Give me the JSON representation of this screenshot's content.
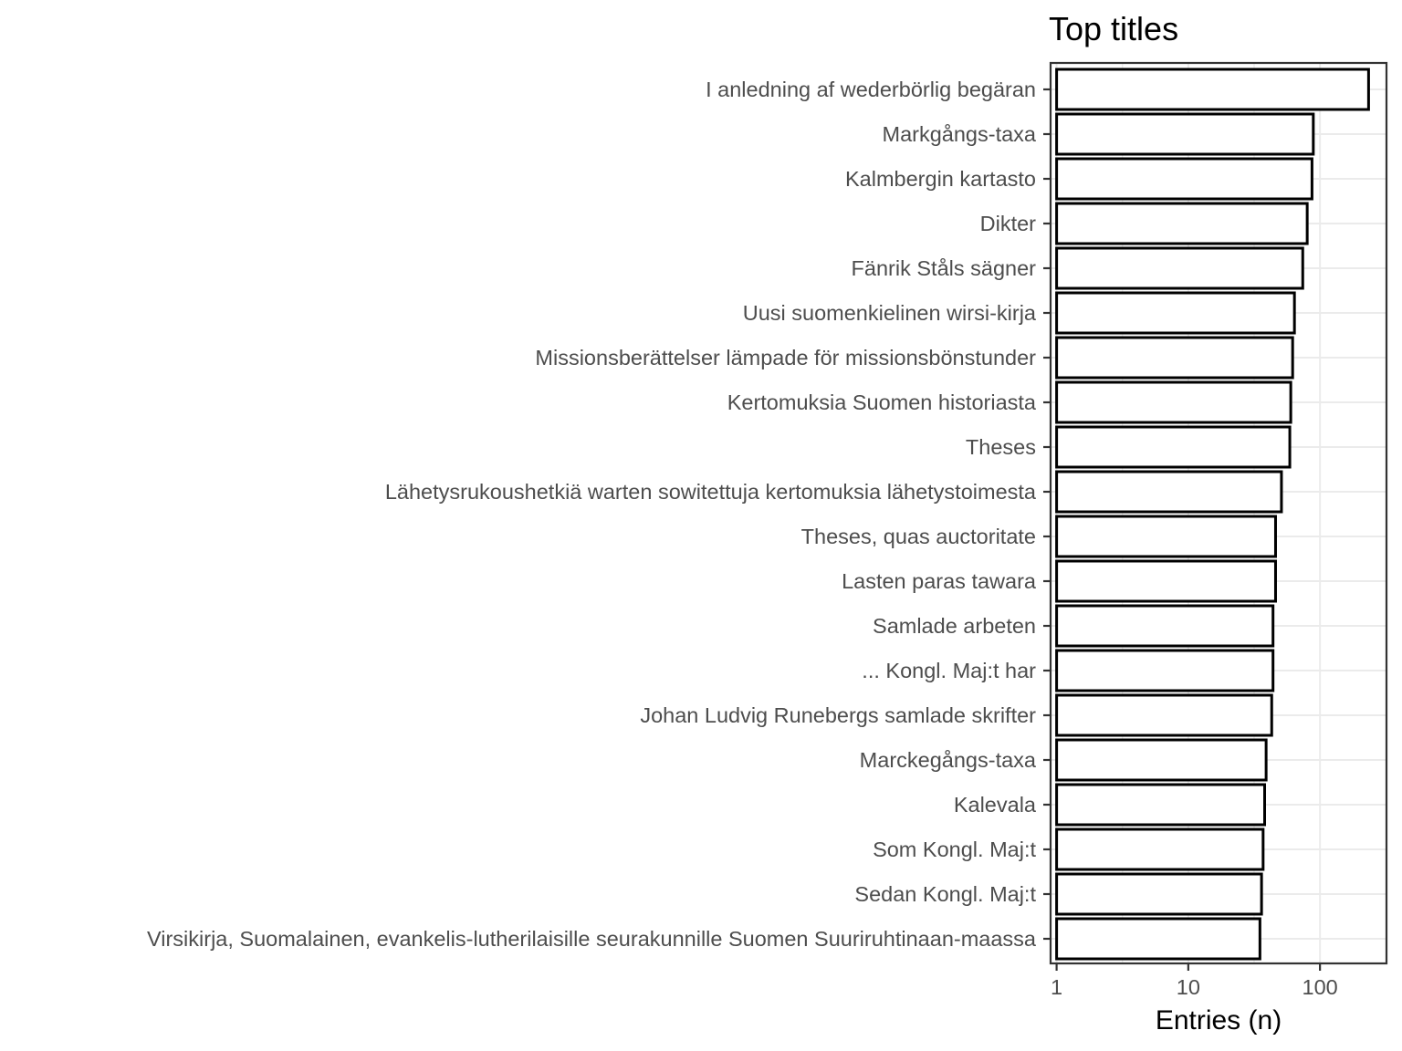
{
  "chart_data": {
    "type": "bar",
    "orientation": "horizontal",
    "title": "Top titles",
    "xlabel": "Entries (n)",
    "ylabel": "",
    "x_scale": "log10",
    "xlim": [
      0.9,
      320
    ],
    "x_ticks": [
      1,
      10,
      100
    ],
    "x_tick_labels": [
      "1",
      "10",
      "100"
    ],
    "grid": "on",
    "categories": [
      "I anledning af wederbörlig begäran",
      "Markgångs-taxa",
      "Kalmbergin kartasto",
      "Dikter",
      "Fänrik Ståls sägner",
      "Uusi suomenkielinen wirsi-kirja",
      "Missionsberättelser lämpade för missionsbönstunder",
      "Kertomuksia Suomen historiasta",
      "Theses",
      "Lähetysrukoushetkiä warten sowitettuja kertomuksia lähetystoimesta",
      "Theses, quas auctoritate",
      "Lasten paras tawara",
      "Samlade arbeten",
      "... Kongl. Maj:t har",
      "Johan Ludvig Runebergs samlade skrifter",
      "Marckegångs-taxa",
      "Kalevala",
      "Som Kongl. Maj:t",
      "Sedan Kongl. Maj:t",
      "Virsikirja, Suomalainen, evankelis-lutherilaisille seurakunnille Suomen Suuriruhtinaan-maassa"
    ],
    "values": [
      234,
      89,
      87,
      80,
      74,
      64,
      62,
      60,
      59,
      51,
      46,
      46,
      44,
      44,
      43,
      39,
      38,
      37,
      36,
      35
    ]
  }
}
